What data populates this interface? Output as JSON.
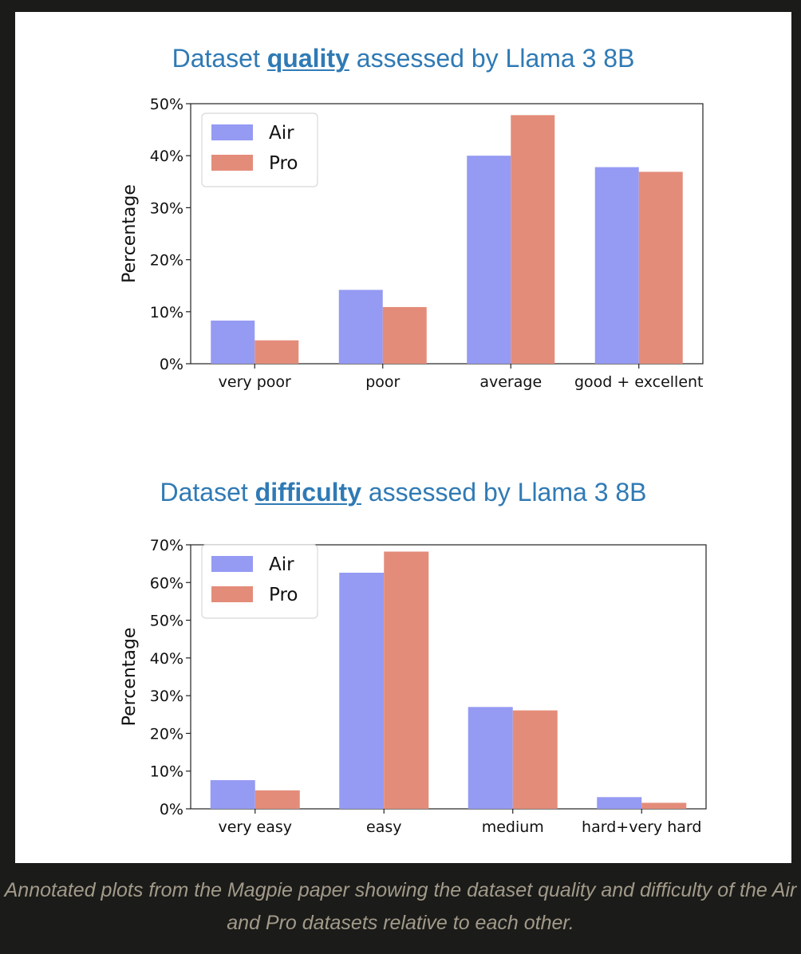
{
  "chart_data": [
    {
      "type": "bar",
      "title_parts": {
        "before": "Dataset ",
        "keyword": "quality",
        "after": " assessed by Llama 3 8B"
      },
      "categories": [
        "very poor",
        "poor",
        "average",
        "good + excellent"
      ],
      "series": [
        {
          "name": "Air",
          "color": "#959af3",
          "values": [
            8.3,
            14.2,
            40.0,
            37.8
          ]
        },
        {
          "name": "Pro",
          "color": "#e48c7a",
          "values": [
            4.5,
            10.9,
            47.8,
            36.9
          ]
        }
      ],
      "ylabel": "Percentage",
      "ylim": [
        0,
        50
      ],
      "yticks": [
        0,
        10,
        20,
        30,
        40,
        50
      ],
      "ytick_labels": [
        "0%",
        "10%",
        "20%",
        "30%",
        "40%",
        "50%"
      ],
      "legend": "top-left",
      "grid": false
    },
    {
      "type": "bar",
      "title_parts": {
        "before": "Dataset ",
        "keyword": "difficulty",
        "after": " assessed by Llama 3 8B"
      },
      "categories": [
        "very easy",
        "easy",
        "medium",
        "hard+very hard"
      ],
      "series": [
        {
          "name": "Air",
          "color": "#959af3",
          "values": [
            7.6,
            62.6,
            27.0,
            3.1
          ]
        },
        {
          "name": "Pro",
          "color": "#e48c7a",
          "values": [
            4.9,
            68.2,
            26.1,
            1.6
          ]
        }
      ],
      "ylabel": "Percentage",
      "ylim": [
        0,
        70
      ],
      "yticks": [
        0,
        10,
        20,
        30,
        40,
        50,
        60,
        70
      ],
      "ytick_labels": [
        "0%",
        "10%",
        "20%",
        "30%",
        "40%",
        "50%",
        "60%",
        "70%"
      ],
      "legend": "top-left",
      "grid": false
    }
  ],
  "caption": "Annotated plots from the Magpie paper showing the dataset quality and difficulty of the Air and Pro datasets relative to each other."
}
